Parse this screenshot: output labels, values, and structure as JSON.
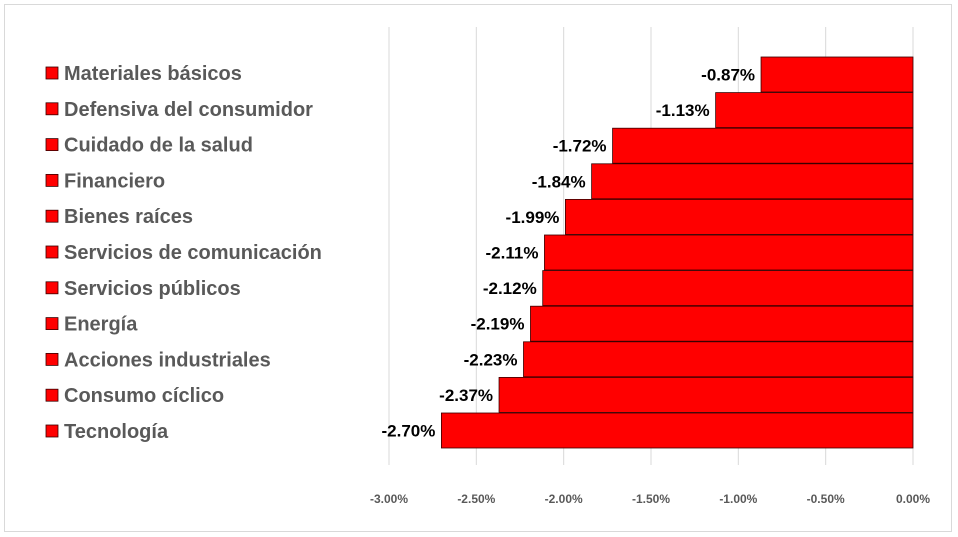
{
  "chart_data": {
    "type": "bar",
    "orientation": "horizontal",
    "categories": [
      "Materiales básicos",
      "Defensiva del consumidor",
      "Cuidado de la salud",
      "Financiero",
      "Bienes raíces",
      "Servicios de comunicación",
      "Servicios públicos",
      "Energía",
      "Acciones industriales",
      "Consumo cíclico",
      "Tecnología"
    ],
    "values": [
      -0.87,
      -1.13,
      -1.72,
      -1.84,
      -1.99,
      -2.11,
      -2.12,
      -2.19,
      -2.23,
      -2.37,
      -2.7
    ],
    "data_labels": [
      "-0.87%",
      "-1.13%",
      "-1.72%",
      "-1.84%",
      "-1.99%",
      "-2.11%",
      "-2.12%",
      "-2.19%",
      "-2.23%",
      "-2.37%",
      "-2.70%"
    ],
    "xlim": [
      -3.0,
      0.0
    ],
    "x_ticks": [
      -3.0,
      -2.5,
      -2.0,
      -1.5,
      -1.0,
      -0.5,
      0.0
    ],
    "x_tick_labels": [
      "-3.00%",
      "-2.50%",
      "-2.00%",
      "-1.50%",
      "-1.00%",
      "-0.50%",
      "0.00%"
    ],
    "grid": true,
    "legend": "left",
    "colors": {
      "bar": "#ff0000",
      "bar_border": "#3a0000",
      "legend_swatch": "#ff0000"
    }
  }
}
